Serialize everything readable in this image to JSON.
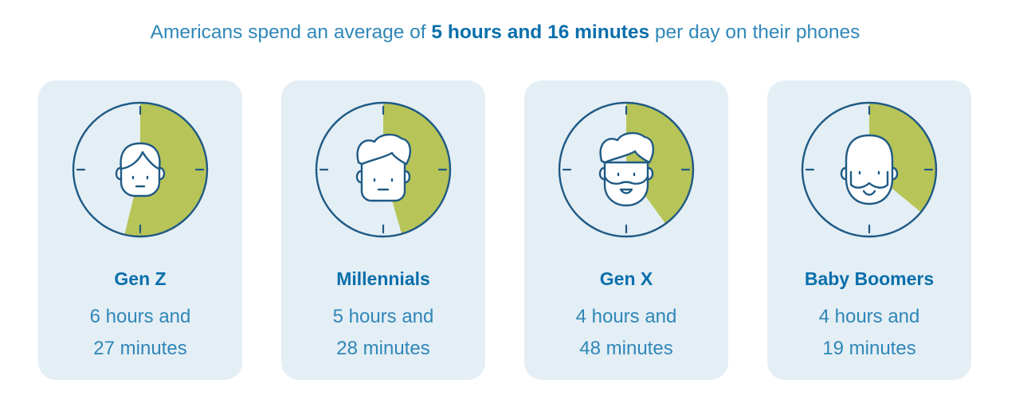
{
  "headline": {
    "prefix": "Americans spend an average of ",
    "highlight": "5 hours and 16 minutes",
    "suffix": " per day on their phones"
  },
  "colors": {
    "fill": "#b7c457",
    "ring": "#1f5a85",
    "card_bg": "#e4eef5",
    "accent": "#0a6fab"
  },
  "chart_data": {
    "type": "pie",
    "title": "Americans spend an average of 5 hours and 16 minutes per day on their phones",
    "unit": "hours per day (dial = 12 hours)",
    "categories": [
      "Gen Z",
      "Millennials",
      "Gen X",
      "Baby Boomers"
    ],
    "values": [
      6.45,
      5.4667,
      4.8,
      4.3167
    ],
    "labels": [
      [
        "6 hours and",
        "27 minutes"
      ],
      [
        "5 hours and",
        "28 minutes"
      ],
      [
        "4 hours and",
        "48 minutes"
      ],
      [
        "4 hours and",
        "19 minutes"
      ]
    ],
    "icons": [
      "gen-z-face-icon",
      "millennial-face-icon",
      "gen-x-bearded-face-icon",
      "boomer-bald-bearded-face-icon"
    ]
  }
}
